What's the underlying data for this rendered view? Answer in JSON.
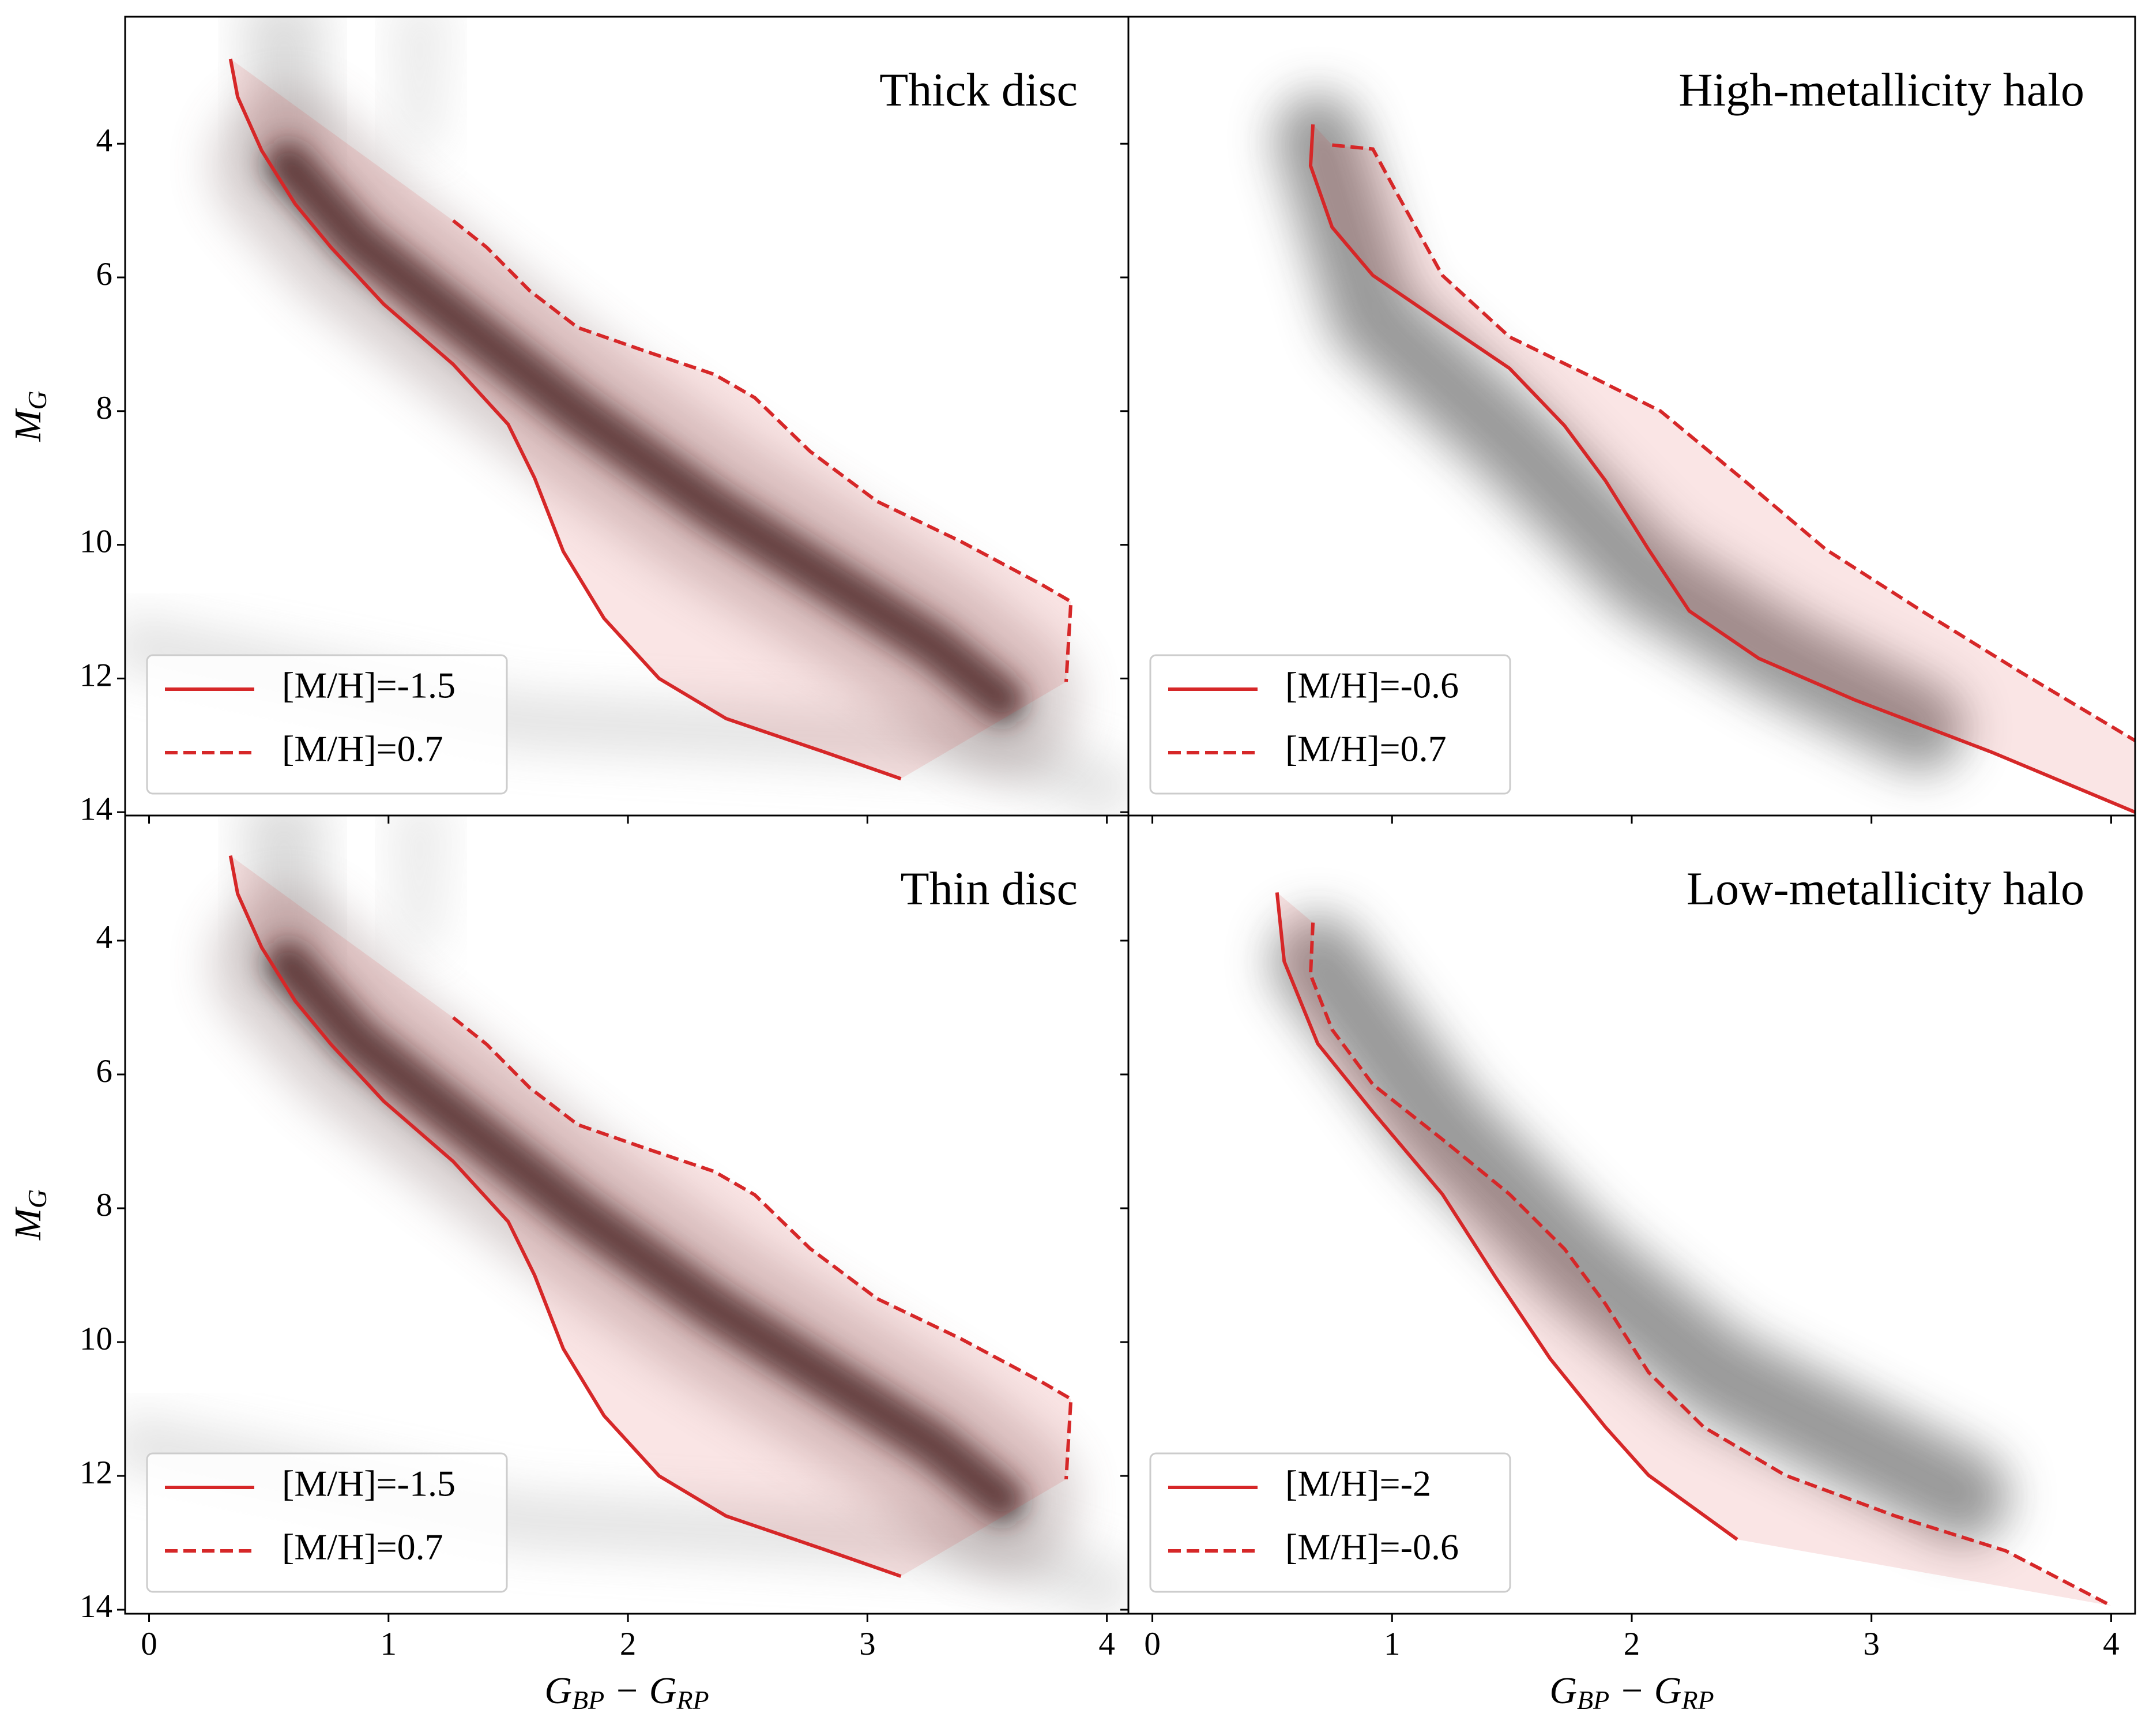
{
  "chart_data": [
    {
      "type": "line",
      "title": "Thick disc",
      "y_label": [
        "M",
        "G"
      ],
      "xlim": [
        -0.1,
        4.09
      ],
      "ylim": [
        14.05,
        2.1
      ],
      "xticks": [
        0,
        1,
        2,
        3,
        4
      ],
      "yticks": [
        4,
        6,
        8,
        10,
        12,
        14
      ],
      "series": [
        {
          "name": "[M/H]=-1.5",
          "color": "#d62728",
          "style": "solid",
          "x": [
            0.34,
            0.37,
            0.47,
            0.61,
            0.76,
            0.98,
            1.27,
            1.5,
            1.61,
            1.73,
            1.9,
            2.13,
            2.41,
            2.82,
            3.14
          ],
          "y": [
            2.73,
            3.3,
            4.1,
            4.9,
            5.55,
            6.4,
            7.3,
            8.2,
            9.0,
            10.1,
            11.1,
            12.0,
            12.6,
            13.1,
            13.5
          ]
        },
        {
          "name": "[M/H]=0.7",
          "color": "#d62728",
          "style": "dashed",
          "x": [
            1.27,
            1.41,
            1.59,
            1.79,
            2.07,
            2.36,
            2.53,
            2.76,
            3.04,
            3.39,
            3.73,
            3.85,
            3.83
          ],
          "y": [
            5.15,
            5.55,
            6.2,
            6.75,
            7.1,
            7.45,
            7.8,
            8.6,
            9.35,
            9.95,
            10.6,
            10.85,
            12.05
          ]
        }
      ]
    },
    {
      "type": "line",
      "title": "High-metallicity halo",
      "xlim": [
        -0.1,
        4.1
      ],
      "ylim": [
        14.05,
        2.1
      ],
      "xticks": [
        0,
        1,
        2,
        3,
        4
      ],
      "yticks": [
        4,
        6,
        8,
        10,
        12,
        14
      ],
      "series": [
        {
          "name": "[M/H]=-0.6",
          "color": "#d62728",
          "style": "solid",
          "x": [
            0.67,
            0.66,
            0.75,
            0.92,
            1.21,
            1.49,
            1.72,
            1.89,
            2.07,
            2.24,
            2.53,
            2.93,
            3.5,
            4.1
          ],
          "y": [
            3.71,
            4.33,
            5.25,
            5.97,
            6.68,
            7.36,
            8.22,
            9.04,
            10.07,
            10.99,
            11.7,
            12.32,
            13.1,
            14.0
          ]
        },
        {
          "name": "[M/H]=0.7",
          "color": "#d62728",
          "style": "dashed",
          "x": [
            0.75,
            0.92,
            1.02,
            1.21,
            1.49,
            1.84,
            2.12,
            2.47,
            2.81,
            3.21,
            3.62,
            4.1
          ],
          "y": [
            4.02,
            4.08,
            4.74,
            5.97,
            6.89,
            7.5,
            8.0,
            9.04,
            10.07,
            10.99,
            11.9,
            12.93
          ]
        }
      ]
    },
    {
      "type": "line",
      "title": "Thin disc",
      "y_label": [
        "M",
        "G"
      ],
      "x_label": [
        "G",
        "BP",
        " − G",
        "RP"
      ],
      "xlim": [
        -0.1,
        4.09
      ],
      "ylim": [
        14.06,
        2.13
      ],
      "xticks": [
        0,
        1,
        2,
        3,
        4
      ],
      "yticks": [
        4,
        6,
        8,
        10,
        12,
        14
      ],
      "series": [
        {
          "name": "[M/H]=-1.5",
          "color": "#d62728",
          "style": "solid",
          "x": [
            0.34,
            0.37,
            0.47,
            0.61,
            0.76,
            0.98,
            1.27,
            1.5,
            1.61,
            1.73,
            1.9,
            2.13,
            2.41,
            2.82,
            3.14
          ],
          "y": [
            2.73,
            3.3,
            4.1,
            4.9,
            5.55,
            6.4,
            7.3,
            8.2,
            9.0,
            10.1,
            11.1,
            12.0,
            12.6,
            13.1,
            13.5
          ]
        },
        {
          "name": "[M/H]=0.7",
          "color": "#d62728",
          "style": "dashed",
          "x": [
            1.27,
            1.41,
            1.59,
            1.79,
            2.07,
            2.36,
            2.53,
            2.76,
            3.04,
            3.39,
            3.73,
            3.85,
            3.83
          ],
          "y": [
            5.15,
            5.55,
            6.2,
            6.75,
            7.1,
            7.45,
            7.8,
            8.6,
            9.35,
            9.95,
            10.6,
            10.85,
            12.05
          ]
        }
      ]
    },
    {
      "type": "line",
      "title": "Low-metallicity halo",
      "x_label": [
        "G",
        "BP",
        " − G",
        "RP"
      ],
      "xlim": [
        -0.1,
        4.1
      ],
      "ylim": [
        14.06,
        2.13
      ],
      "xticks": [
        0,
        1,
        2,
        3,
        4
      ],
      "yticks": [
        4,
        6,
        8,
        10,
        12,
        14
      ],
      "series": [
        {
          "name": "[M/H]=-2",
          "color": "#d62728",
          "style": "solid",
          "x": [
            0.52,
            0.55,
            0.69,
            0.92,
            1.21,
            1.43,
            1.66,
            1.89,
            2.07,
            2.44
          ],
          "y": [
            3.28,
            4.31,
            5.54,
            6.56,
            7.79,
            9.02,
            10.25,
            11.27,
            11.99,
            12.95
          ]
        },
        {
          "name": "[M/H]=-0.6",
          "color": "#d62728",
          "style": "dashed",
          "x": [
            0.67,
            0.66,
            0.75,
            0.92,
            1.21,
            1.49,
            1.72,
            1.89,
            2.07,
            2.3,
            2.64,
            3.1,
            3.56,
            4.0
          ],
          "y": [
            3.73,
            4.51,
            5.33,
            6.15,
            6.97,
            7.79,
            8.61,
            9.43,
            10.45,
            11.27,
            11.99,
            12.6,
            13.12,
            13.94
          ]
        }
      ]
    }
  ]
}
